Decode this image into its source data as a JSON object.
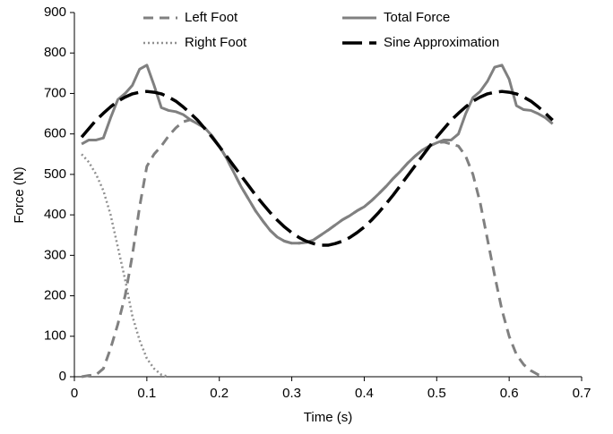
{
  "chart_data": {
    "type": "line",
    "x_label": "Time (s)",
    "y_label": "Force (N)",
    "x": [
      0.01,
      0.02,
      0.03,
      0.04,
      0.05,
      0.06,
      0.07,
      0.08,
      0.09,
      0.1,
      0.11,
      0.12,
      0.13,
      0.14,
      0.15,
      0.16,
      0.17,
      0.18,
      0.19,
      0.2,
      0.21,
      0.22,
      0.23,
      0.24,
      0.25,
      0.26,
      0.27,
      0.28,
      0.29,
      0.3,
      0.31,
      0.32,
      0.33,
      0.34,
      0.35,
      0.36,
      0.37,
      0.38,
      0.39,
      0.4,
      0.41,
      0.42,
      0.43,
      0.44,
      0.45,
      0.46,
      0.47,
      0.48,
      0.49,
      0.5,
      0.51,
      0.52,
      0.53,
      0.54,
      0.55,
      0.56,
      0.57,
      0.58,
      0.59,
      0.6,
      0.61,
      0.62,
      0.63,
      0.64,
      0.65,
      0.66
    ],
    "series": [
      {
        "name": "Left Foot",
        "color": "#808080",
        "dash": "dashed",
        "values": [
          0,
          3,
          5,
          20,
          70,
          130,
          200,
          300,
          420,
          520,
          550,
          570,
          595,
          615,
          630,
          635,
          625,
          615,
          595,
          570,
          540,
          505,
          470,
          440,
          410,
          385,
          362,
          345,
          335,
          330,
          330,
          332,
          338,
          350,
          362,
          375,
          388,
          398,
          410,
          420,
          435,
          452,
          470,
          490,
          508,
          528,
          545,
          560,
          570,
          578,
          580,
          575,
          570,
          545,
          500,
          430,
          340,
          250,
          165,
          100,
          55,
          30,
          15,
          5,
          0,
          null
        ]
      },
      {
        "name": "Right Foot",
        "color": "#909090",
        "dash": "dotted",
        "values": [
          550,
          530,
          500,
          460,
          400,
          320,
          240,
          150,
          90,
          45,
          20,
          5,
          0,
          null,
          null,
          null,
          null,
          null,
          null,
          null,
          null,
          null,
          null,
          null,
          null,
          null,
          null,
          null,
          null,
          null,
          null,
          null,
          null,
          null,
          null,
          null,
          null,
          null,
          null,
          null,
          null,
          null,
          null,
          null,
          null,
          null,
          null,
          null,
          null,
          null,
          null,
          null,
          null,
          null,
          null,
          null,
          null,
          null,
          null,
          null,
          null,
          null,
          null,
          null,
          null,
          null
        ]
      },
      {
        "name": "Total Force",
        "color": "#808080",
        "dash": "solid",
        "values": [
          575,
          585,
          585,
          590,
          640,
          685,
          700,
          720,
          760,
          770,
          720,
          665,
          658,
          655,
          648,
          635,
          625,
          615,
          595,
          570,
          540,
          505,
          470,
          440,
          410,
          385,
          362,
          345,
          335,
          330,
          330,
          332,
          338,
          350,
          362,
          375,
          388,
          398,
          410,
          420,
          435,
          452,
          470,
          490,
          508,
          528,
          545,
          560,
          570,
          578,
          585,
          585,
          600,
          650,
          690,
          705,
          730,
          765,
          770,
          735,
          670,
          660,
          658,
          650,
          640,
          625
        ]
      },
      {
        "name": "Sine Approximation",
        "color": "#000000",
        "dash": "longdash",
        "values": [
          592,
          613,
          634,
          651,
          667,
          681,
          691,
          699,
          703,
          705,
          703,
          699,
          691,
          681,
          667,
          651,
          634,
          613,
          592,
          569,
          545,
          521,
          497,
          473,
          449,
          427,
          406,
          387,
          370,
          356,
          344,
          335,
          329,
          325,
          325,
          329,
          335,
          344,
          356,
          370,
          387,
          406,
          427,
          449,
          473,
          497,
          521,
          545,
          569,
          592,
          613,
          634,
          651,
          667,
          681,
          691,
          699,
          703,
          705,
          703,
          699,
          691,
          681,
          667,
          651,
          634
        ]
      }
    ],
    "xlim": [
      0,
      0.7
    ],
    "xticks": [
      0,
      0.1,
      0.2,
      0.3,
      0.4,
      0.5,
      0.6,
      0.7
    ],
    "ylim": [
      0,
      900
    ],
    "yticks": [
      0,
      100,
      200,
      300,
      400,
      500,
      600,
      700,
      800,
      900
    ],
    "grid": false,
    "legend": "top"
  }
}
